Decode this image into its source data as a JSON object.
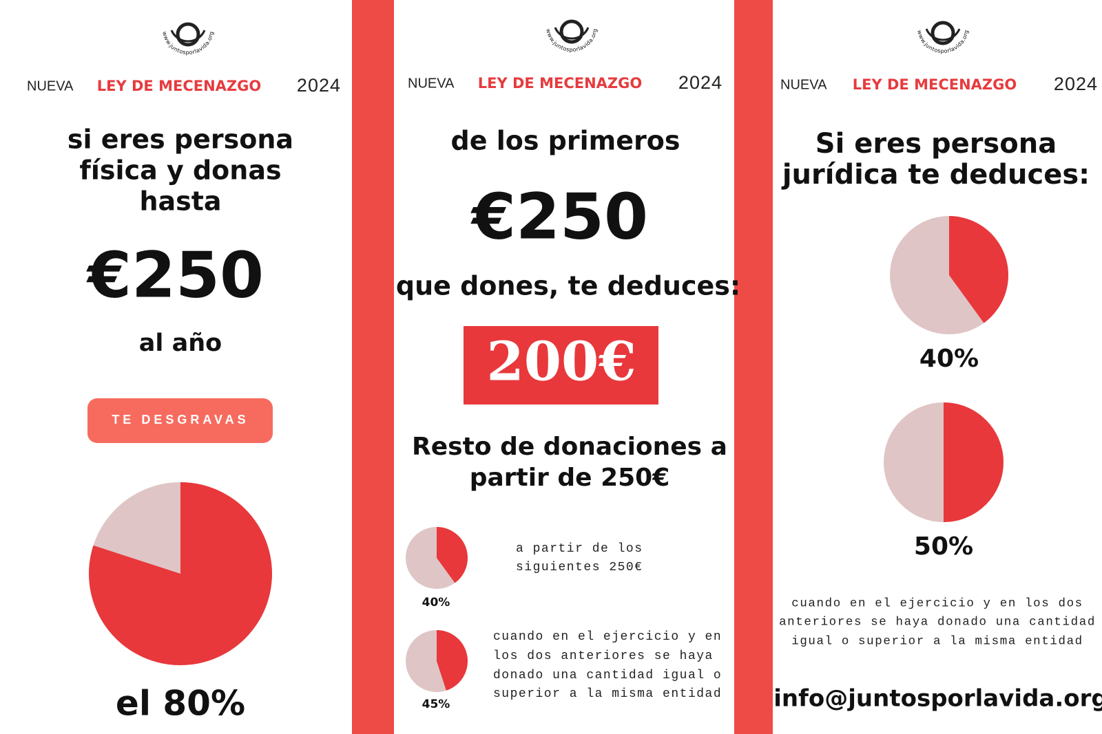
{
  "logo": "www.juntosporlavida.org",
  "header": {
    "prefix": "NUEVA",
    "title": "LEY DE MECENAZGO",
    "year": "2024"
  },
  "panel1": {
    "title_lines": [
      "si eres persona",
      "física y donas",
      "hasta"
    ],
    "amount": "€250",
    "period": "al año",
    "button": "TE DESGRAVAS",
    "pie": {
      "value": 80,
      "label": "el 80%"
    }
  },
  "panel2": {
    "lead": "de los primeros",
    "amount": "€250",
    "follow": "que dones, te deduces:",
    "highlight": "200€",
    "rest_lines": [
      "Resto de donaciones a",
      "partir de 250€"
    ],
    "pies": [
      {
        "value": 40,
        "label": "40%",
        "note_lines": [
          "a partir de los",
          "siguientes 250€"
        ]
      },
      {
        "value": 45,
        "label": "45%",
        "note_lines": [
          "cuando en el ejercicio y en",
          "los dos anteriores se haya",
          "donado una cantidad igual o",
          "superior a la misma entidad"
        ]
      }
    ]
  },
  "panel3": {
    "title_lines": [
      "Si eres persona",
      "jurídica te deduces:"
    ],
    "pies": [
      {
        "value": 40,
        "label": "40%"
      },
      {
        "value": 50,
        "label": "50%"
      }
    ],
    "note_lines": [
      "cuando en el ejercicio y en los dos",
      "anteriores se haya donado una cantidad",
      "igual o superior a la misma entidad"
    ],
    "email": "info@juntosporlavida.org"
  }
}
